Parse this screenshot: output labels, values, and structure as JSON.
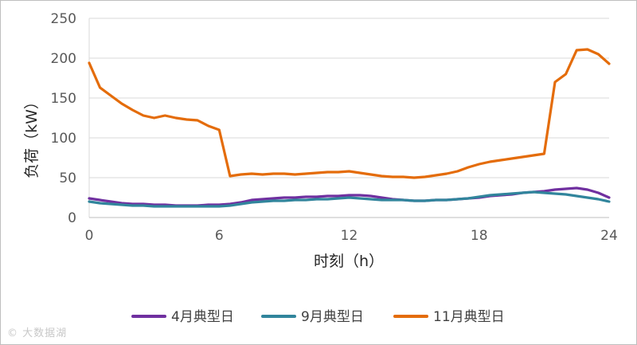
{
  "chart_data": {
    "type": "line",
    "title": "",
    "xlabel": "时刻（h）",
    "ylabel": "负荷（kW）",
    "xlim": [
      0,
      24
    ],
    "ylim": [
      0,
      250
    ],
    "x_ticks": [
      0,
      6,
      12,
      18,
      24
    ],
    "y_ticks": [
      0,
      50,
      100,
      150,
      200,
      250
    ],
    "grid": "horizontal",
    "legend_position": "bottom",
    "x": [
      0,
      0.5,
      1,
      1.5,
      2,
      2.5,
      3,
      3.5,
      4,
      4.5,
      5,
      5.5,
      6,
      6.5,
      7,
      7.5,
      8,
      8.5,
      9,
      9.5,
      10,
      10.5,
      11,
      11.5,
      12,
      12.5,
      13,
      13.5,
      14,
      14.5,
      15,
      15.5,
      16,
      16.5,
      17,
      17.5,
      18,
      18.5,
      19,
      19.5,
      20,
      20.5,
      21,
      21.5,
      22,
      22.5,
      23,
      23.5,
      24
    ],
    "series": [
      {
        "name": "4月典型日",
        "color": "#7030a0",
        "values": [
          24,
          22,
          20,
          18,
          17,
          17,
          16,
          16,
          15,
          15,
          15,
          16,
          16,
          17,
          19,
          22,
          23,
          24,
          25,
          25,
          26,
          26,
          27,
          27,
          28,
          28,
          27,
          25,
          23,
          22,
          21,
          21,
          22,
          22,
          23,
          24,
          25,
          27,
          28,
          29,
          31,
          32,
          33,
          35,
          36,
          37,
          35,
          31,
          25
        ]
      },
      {
        "name": "9月典型日",
        "color": "#31859c",
        "values": [
          20,
          18,
          17,
          16,
          15,
          15,
          14,
          14,
          14,
          14,
          14,
          14,
          14,
          15,
          17,
          19,
          20,
          21,
          21,
          22,
          22,
          23,
          23,
          24,
          25,
          24,
          23,
          22,
          22,
          22,
          21,
          21,
          22,
          22,
          23,
          24,
          26,
          28,
          29,
          30,
          31,
          32,
          31,
          30,
          29,
          27,
          25,
          23,
          20
        ]
      },
      {
        "name": "11月典型日",
        "color": "#e46c0a",
        "values": [
          194,
          163,
          153,
          143,
          135,
          128,
          125,
          128,
          125,
          123,
          122,
          115,
          110,
          52,
          54,
          55,
          54,
          55,
          55,
          54,
          55,
          56,
          57,
          57,
          58,
          56,
          54,
          52,
          51,
          51,
          50,
          51,
          53,
          55,
          58,
          63,
          67,
          70,
          72,
          74,
          76,
          78,
          80,
          170,
          180,
          210,
          211,
          205,
          193
        ]
      }
    ]
  },
  "watermark": "© 大数据湖"
}
